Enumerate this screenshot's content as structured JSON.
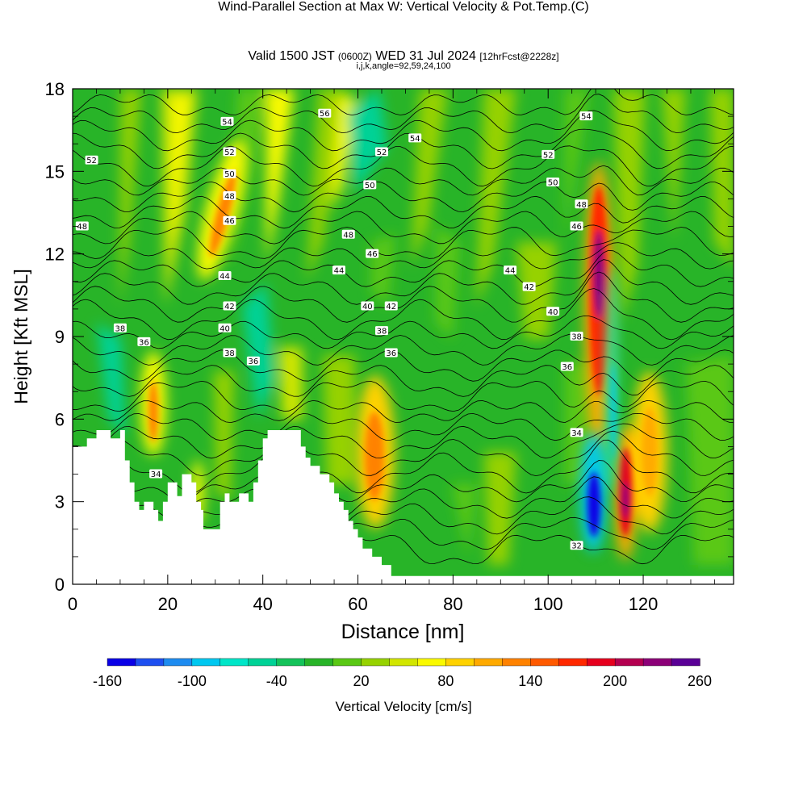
{
  "header": {
    "title": "Wind-Parallel Section at Max W: Vertical Velocity & Pot.Temp.",
    "copyright": "(C)",
    "valid_prefix": "Valid 1500 JST",
    "valid_utc": "(0600Z)",
    "valid_date": "WED 31 Jul 2024",
    "forecast": "[12hrFcst@2228z]",
    "params": "i,j,k,angle=92,59,24,100"
  },
  "chart_data": {
    "type": "heatmap",
    "xlabel": "Distance [nm]",
    "ylabel": "Height [Kft MSL]",
    "xlim": [
      0,
      139
    ],
    "ylim": [
      0,
      18
    ],
    "x_ticks": [
      "0",
      "20",
      "40",
      "60",
      "80",
      "100",
      "120"
    ],
    "y_ticks": [
      "0",
      "3",
      "6",
      "9",
      "12",
      "15",
      "18"
    ],
    "colorbar": {
      "label": "Vertical Velocity [cm/s]",
      "ticks": [
        "-160",
        "-100",
        "-40",
        "20",
        "80",
        "140",
        "200",
        "260"
      ],
      "range": [
        -160,
        260
      ],
      "step": 20,
      "colors": [
        "#0a00e6",
        "#1e4ff0",
        "#1e8cf0",
        "#00c8f0",
        "#00e6c8",
        "#00d296",
        "#14c35a",
        "#28b428",
        "#5ac814",
        "#96d200",
        "#d2e600",
        "#fafa00",
        "#ffd200",
        "#ffaa00",
        "#ff8200",
        "#ff5a00",
        "#ff2800",
        "#e6001e",
        "#b40050",
        "#8c0078",
        "#5a0096"
      ]
    },
    "updrafts": [
      {
        "x": 17.2,
        "z": 6.5,
        "peak_cms": 160
      },
      {
        "x": 31,
        "z": 13,
        "peak_cms": 150
      },
      {
        "x": 64,
        "z": 5,
        "peak_cms": 160
      },
      {
        "x": 111,
        "z": 11,
        "peak_cms": 260
      },
      {
        "x": 116.5,
        "z": 3.5,
        "peak_cms": 260
      },
      {
        "x": 122,
        "z": 4.5,
        "peak_cms": 120
      }
    ],
    "downdrafts": [
      {
        "x": 110.5,
        "z": 2.5,
        "peak_cms": -160
      },
      {
        "x": 113.5,
        "z": 8,
        "peak_cms": -60
      }
    ],
    "contour_labels": [
      {
        "text": "52",
        "x": 4,
        "z": 15.4
      },
      {
        "text": "48",
        "x": 2,
        "z": 13
      },
      {
        "text": "54",
        "x": 32.5,
        "z": 16.8
      },
      {
        "text": "52",
        "x": 33,
        "z": 15.7
      },
      {
        "text": "50",
        "x": 33,
        "z": 14.9
      },
      {
        "text": "48",
        "x": 33,
        "z": 14.1
      },
      {
        "text": "46",
        "x": 33,
        "z": 13.2
      },
      {
        "text": "44",
        "x": 32,
        "z": 11.2
      },
      {
        "text": "42",
        "x": 33,
        "z": 10.1
      },
      {
        "text": "40",
        "x": 32,
        "z": 9.3
      },
      {
        "text": "38",
        "x": 33,
        "z": 8.4
      },
      {
        "text": "38",
        "x": 10,
        "z": 9.3
      },
      {
        "text": "36",
        "x": 15,
        "z": 8.8
      },
      {
        "text": "36",
        "x": 38,
        "z": 8.1
      },
      {
        "text": "34",
        "x": 17.5,
        "z": 4
      },
      {
        "text": "56",
        "x": 53,
        "z": 17.1
      },
      {
        "text": "54",
        "x": 72,
        "z": 16.2
      },
      {
        "text": "52",
        "x": 65,
        "z": 15.7
      },
      {
        "text": "50",
        "x": 62.5,
        "z": 14.5
      },
      {
        "text": "48",
        "x": 58,
        "z": 12.7
      },
      {
        "text": "46",
        "x": 63,
        "z": 12
      },
      {
        "text": "44",
        "x": 56,
        "z": 11.4
      },
      {
        "text": "42",
        "x": 67,
        "z": 10.1
      },
      {
        "text": "40",
        "x": 62,
        "z": 10.1
      },
      {
        "text": "38",
        "x": 65,
        "z": 9.2
      },
      {
        "text": "36",
        "x": 67,
        "z": 8.4
      },
      {
        "text": "54",
        "x": 108,
        "z": 17
      },
      {
        "text": "52",
        "x": 100,
        "z": 15.6
      },
      {
        "text": "50",
        "x": 101,
        "z": 14.6
      },
      {
        "text": "48",
        "x": 107,
        "z": 13.8
      },
      {
        "text": "46",
        "x": 106,
        "z": 13
      },
      {
        "text": "44",
        "x": 92,
        "z": 11.4
      },
      {
        "text": "42",
        "x": 96,
        "z": 10.8
      },
      {
        "text": "40",
        "x": 101,
        "z": 9.9
      },
      {
        "text": "38",
        "x": 106,
        "z": 9
      },
      {
        "text": "36",
        "x": 104,
        "z": 7.9
      },
      {
        "text": "34",
        "x": 106,
        "z": 5.5
      },
      {
        "text": "32",
        "x": 106,
        "z": 1.4
      }
    ],
    "terrain": [
      [
        0,
        5
      ],
      [
        3,
        5
      ],
      [
        3,
        5.3
      ],
      [
        5,
        5.3
      ],
      [
        5,
        5.6
      ],
      [
        8,
        5.6
      ],
      [
        8,
        5.3
      ],
      [
        10,
        5.3
      ],
      [
        10,
        5.6
      ],
      [
        11,
        5.6
      ],
      [
        11,
        4.5
      ],
      [
        12,
        4.5
      ],
      [
        12,
        3.7
      ],
      [
        13,
        3.7
      ],
      [
        13,
        3
      ],
      [
        14,
        3
      ],
      [
        14,
        2.7
      ],
      [
        15,
        2.7
      ],
      [
        15,
        3
      ],
      [
        17,
        3
      ],
      [
        17,
        2.7
      ],
      [
        18,
        2.7
      ],
      [
        18,
        2.3
      ],
      [
        19,
        2.3
      ],
      [
        19,
        3
      ],
      [
        20,
        3
      ],
      [
        20,
        3.7
      ],
      [
        22,
        3.7
      ],
      [
        22,
        3.2
      ],
      [
        23,
        3.2
      ],
      [
        23,
        4
      ],
      [
        25,
        4
      ],
      [
        25,
        3.7
      ],
      [
        26,
        3.7
      ],
      [
        26,
        3
      ],
      [
        27,
        3
      ],
      [
        27,
        2.7
      ],
      [
        27.5,
        2.7
      ],
      [
        27.5,
        2
      ],
      [
        31,
        2
      ],
      [
        31,
        3
      ],
      [
        32,
        3
      ],
      [
        32,
        3.3
      ],
      [
        33,
        3.3
      ],
      [
        33,
        3
      ],
      [
        35,
        3
      ],
      [
        35,
        3.3
      ],
      [
        37,
        3.3
      ],
      [
        37,
        3
      ],
      [
        38,
        3
      ],
      [
        38,
        3.7
      ],
      [
        39,
        3.7
      ],
      [
        39,
        4.5
      ],
      [
        40,
        4.5
      ],
      [
        40,
        5.3
      ],
      [
        41,
        5.3
      ],
      [
        41,
        5.6
      ],
      [
        48,
        5.6
      ],
      [
        48,
        5
      ],
      [
        49,
        5
      ],
      [
        49,
        4.6
      ],
      [
        50,
        4.6
      ],
      [
        50,
        4.3
      ],
      [
        52,
        4.3
      ],
      [
        52,
        4
      ],
      [
        54,
        4
      ],
      [
        54,
        3.7
      ],
      [
        55,
        3.7
      ],
      [
        55,
        3.3
      ],
      [
        56,
        3.3
      ],
      [
        56,
        3
      ],
      [
        57,
        3
      ],
      [
        57,
        2.7
      ],
      [
        58,
        2.7
      ],
      [
        58,
        2.3
      ],
      [
        59,
        2.3
      ],
      [
        59,
        2
      ],
      [
        60,
        2
      ],
      [
        60,
        1.7
      ],
      [
        61,
        1.7
      ],
      [
        61,
        1.3
      ],
      [
        63,
        1.3
      ],
      [
        63,
        1
      ],
      [
        65,
        1
      ],
      [
        65,
        0.7
      ],
      [
        67,
        0.7
      ],
      [
        67,
        0.3
      ],
      [
        139,
        0.3
      ],
      [
        139,
        0
      ]
    ]
  }
}
